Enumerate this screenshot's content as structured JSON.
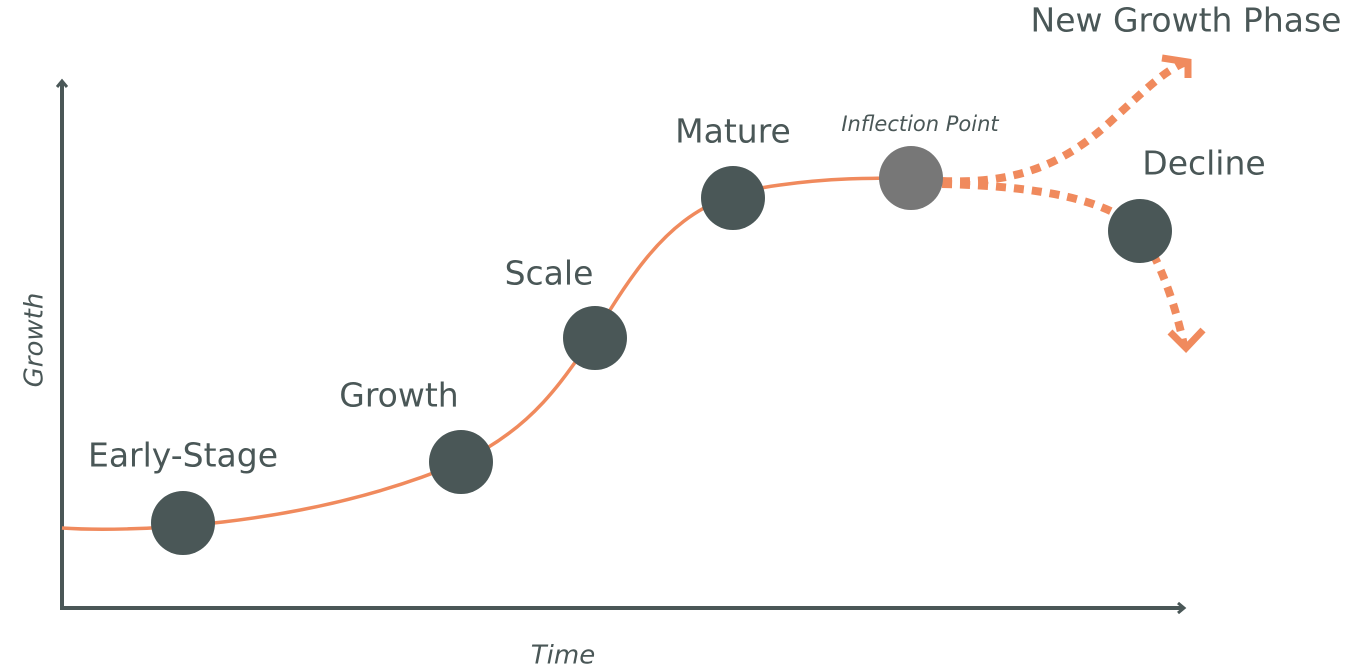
{
  "axes": {
    "y_label": "Growth",
    "x_label": "Time"
  },
  "stages": [
    {
      "label": "Early-Stage"
    },
    {
      "label": "Growth"
    },
    {
      "label": "Scale"
    },
    {
      "label": "Mature"
    },
    {
      "label": "Inflection Point"
    },
    {
      "label": "Decline"
    }
  ],
  "outcomes": {
    "new_growth": "New Growth Phase"
  }
}
